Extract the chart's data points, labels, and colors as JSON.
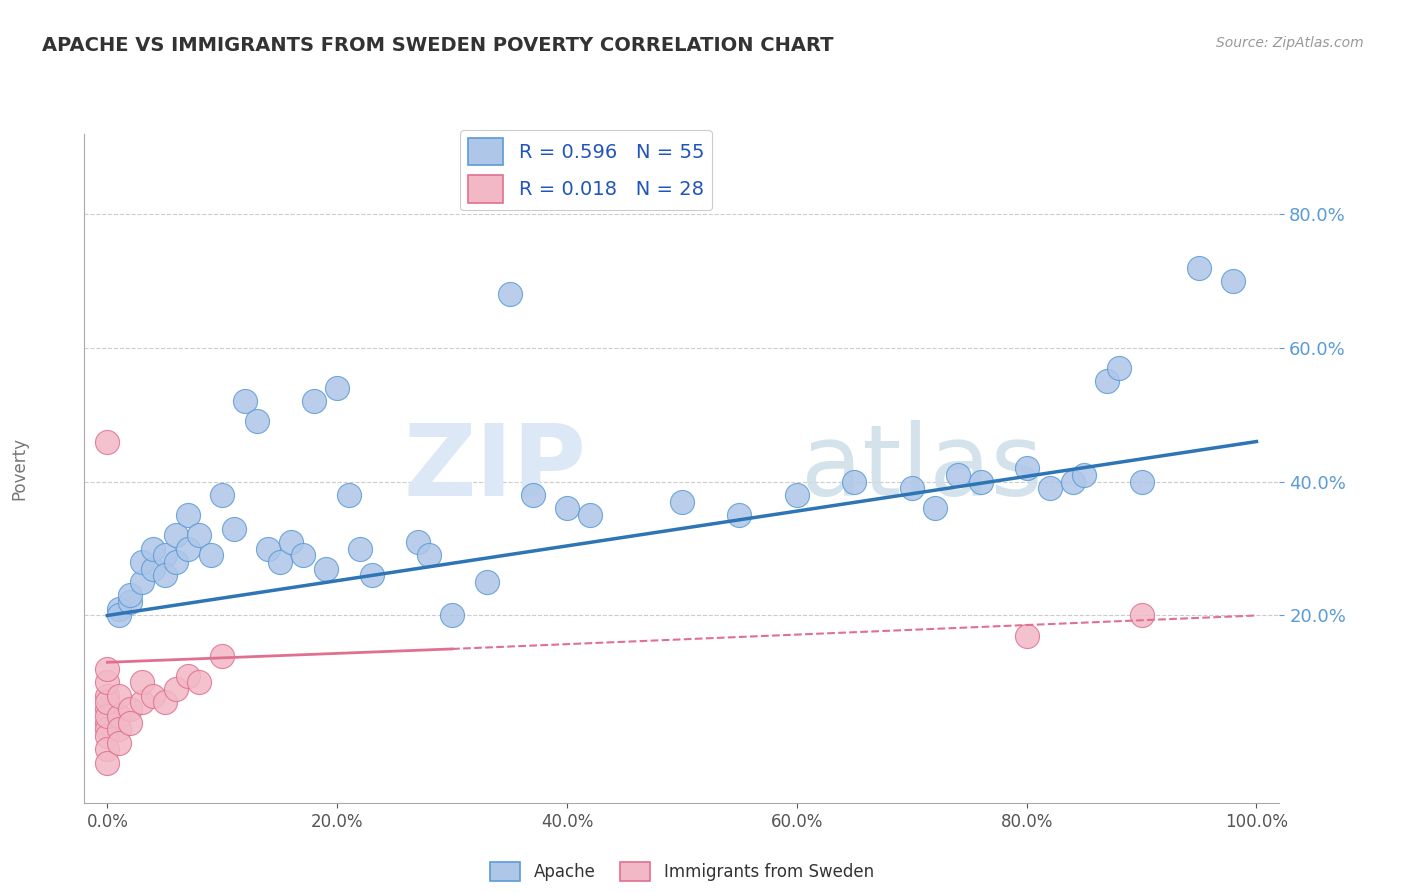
{
  "title": "APACHE VS IMMIGRANTS FROM SWEDEN POVERTY CORRELATION CHART",
  "source": "Source: ZipAtlas.com",
  "ylabel": "Poverty",
  "xlim": [
    -0.02,
    1.02
  ],
  "ylim": [
    -0.08,
    0.92
  ],
  "xtick_labels": [
    "0.0%",
    "20.0%",
    "40.0%",
    "60.0%",
    "80.0%",
    "100.0%"
  ],
  "xtick_vals": [
    0.0,
    0.2,
    0.4,
    0.6,
    0.8,
    1.0
  ],
  "ytick_labels": [
    "20.0%",
    "40.0%",
    "60.0%",
    "80.0%"
  ],
  "ytick_vals": [
    0.2,
    0.4,
    0.6,
    0.8
  ],
  "legend1_label": "R = 0.596   N = 55",
  "legend2_label": "R = 0.018   N = 28",
  "apache_color": "#aec6e8",
  "apache_edge_color": "#5b9bd5",
  "sweden_color": "#f2b8c6",
  "sweden_edge_color": "#e07090",
  "apache_line_color": "#2e75b6",
  "sweden_line_color": "#e07090",
  "background_color": "#ffffff",
  "grid_color": "#cccccc",
  "apache_scatter": [
    [
      0.01,
      0.21
    ],
    [
      0.01,
      0.2
    ],
    [
      0.02,
      0.22
    ],
    [
      0.02,
      0.23
    ],
    [
      0.03,
      0.25
    ],
    [
      0.03,
      0.28
    ],
    [
      0.04,
      0.27
    ],
    [
      0.04,
      0.3
    ],
    [
      0.05,
      0.29
    ],
    [
      0.05,
      0.26
    ],
    [
      0.06,
      0.32
    ],
    [
      0.06,
      0.28
    ],
    [
      0.07,
      0.3
    ],
    [
      0.07,
      0.35
    ],
    [
      0.08,
      0.32
    ],
    [
      0.09,
      0.29
    ],
    [
      0.1,
      0.38
    ],
    [
      0.11,
      0.33
    ],
    [
      0.12,
      0.52
    ],
    [
      0.13,
      0.49
    ],
    [
      0.14,
      0.3
    ],
    [
      0.15,
      0.28
    ],
    [
      0.16,
      0.31
    ],
    [
      0.17,
      0.29
    ],
    [
      0.18,
      0.52
    ],
    [
      0.19,
      0.27
    ],
    [
      0.2,
      0.54
    ],
    [
      0.21,
      0.38
    ],
    [
      0.22,
      0.3
    ],
    [
      0.23,
      0.26
    ],
    [
      0.27,
      0.31
    ],
    [
      0.28,
      0.29
    ],
    [
      0.3,
      0.2
    ],
    [
      0.33,
      0.25
    ],
    [
      0.35,
      0.68
    ],
    [
      0.37,
      0.38
    ],
    [
      0.4,
      0.36
    ],
    [
      0.42,
      0.35
    ],
    [
      0.5,
      0.37
    ],
    [
      0.55,
      0.35
    ],
    [
      0.6,
      0.38
    ],
    [
      0.65,
      0.4
    ],
    [
      0.7,
      0.39
    ],
    [
      0.72,
      0.36
    ],
    [
      0.74,
      0.41
    ],
    [
      0.76,
      0.4
    ],
    [
      0.8,
      0.42
    ],
    [
      0.82,
      0.39
    ],
    [
      0.84,
      0.4
    ],
    [
      0.85,
      0.41
    ],
    [
      0.87,
      0.55
    ],
    [
      0.88,
      0.57
    ],
    [
      0.9,
      0.4
    ],
    [
      0.95,
      0.72
    ],
    [
      0.98,
      0.7
    ]
  ],
  "sweden_scatter": [
    [
      0.0,
      0.46
    ],
    [
      0.0,
      0.06
    ],
    [
      0.0,
      0.04
    ],
    [
      0.0,
      0.03
    ],
    [
      0.0,
      0.02
    ],
    [
      0.0,
      0.08
    ],
    [
      0.0,
      0.05
    ],
    [
      0.0,
      0.07
    ],
    [
      0.0,
      0.0
    ],
    [
      0.0,
      -0.02
    ],
    [
      0.0,
      0.1
    ],
    [
      0.0,
      0.12
    ],
    [
      0.01,
      0.05
    ],
    [
      0.01,
      0.08
    ],
    [
      0.01,
      0.03
    ],
    [
      0.01,
      0.01
    ],
    [
      0.02,
      0.06
    ],
    [
      0.02,
      0.04
    ],
    [
      0.03,
      0.07
    ],
    [
      0.03,
      0.1
    ],
    [
      0.04,
      0.08
    ],
    [
      0.05,
      0.07
    ],
    [
      0.06,
      0.09
    ],
    [
      0.07,
      0.11
    ],
    [
      0.08,
      0.1
    ],
    [
      0.1,
      0.14
    ],
    [
      0.8,
      0.17
    ],
    [
      0.9,
      0.2
    ]
  ],
  "apache_trendline": [
    [
      0.0,
      0.2
    ],
    [
      1.0,
      0.46
    ]
  ],
  "sweden_trendline_solid": [
    [
      0.0,
      0.13
    ],
    [
      0.3,
      0.15
    ]
  ],
  "sweden_trendline_dash": [
    [
      0.3,
      0.15
    ],
    [
      1.0,
      0.2
    ]
  ]
}
